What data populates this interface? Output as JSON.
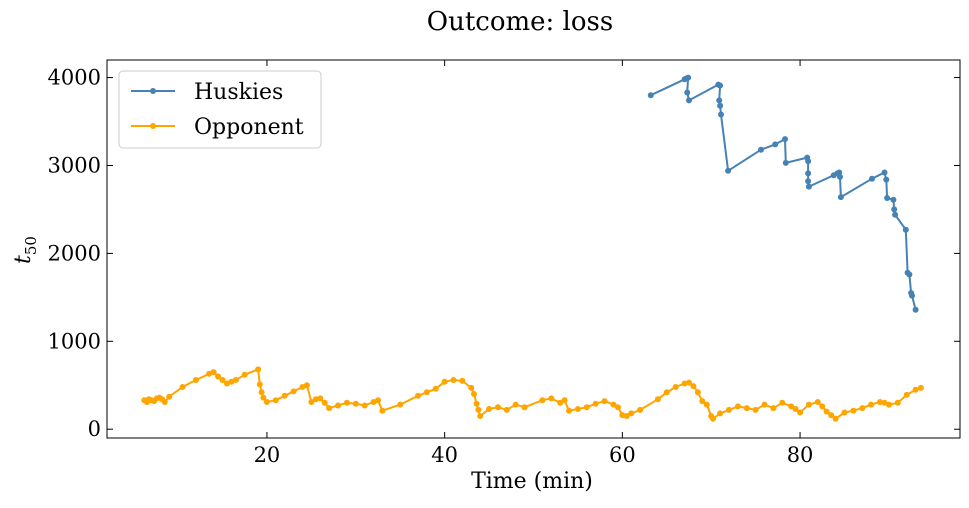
{
  "chart_data": {
    "type": "line",
    "title": "Outcome: loss",
    "xlabel": "Time (min)",
    "ylabel_base": "t",
    "ylabel_sub": "50",
    "xlim": [
      2,
      98
    ],
    "ylim": [
      -100,
      4200
    ],
    "xticks": [
      20,
      40,
      60,
      80
    ],
    "yticks": [
      0,
      1000,
      2000,
      3000,
      4000
    ],
    "grid": false,
    "legend_position": "upper-left",
    "series": [
      {
        "name": "Huskies",
        "color": "#4682b4",
        "x": [
          63.2,
          67.0,
          67.2,
          67.4,
          67.3,
          67.5,
          70.8,
          71.0,
          70.9,
          71.0,
          71.1,
          71.9,
          75.6,
          77.2,
          78.3,
          78.4,
          80.8,
          80.9,
          80.9,
          80.9,
          81.0,
          83.8,
          84.2,
          84.4,
          84.5,
          84.6,
          88.1,
          89.5,
          89.7,
          89.8,
          90.5,
          90.6,
          90.7,
          91.9,
          92.1,
          92.3,
          92.5,
          92.6,
          93.0
        ],
        "y": [
          3800,
          3980,
          3990,
          4000,
          3830,
          3740,
          3920,
          3910,
          3740,
          3680,
          3580,
          2940,
          3180,
          3240,
          3300,
          3030,
          3090,
          3050,
          2910,
          2820,
          2760,
          2890,
          2910,
          2920,
          2870,
          2640,
          2850,
          2920,
          2840,
          2630,
          2610,
          2500,
          2440,
          2270,
          1780,
          1760,
          1550,
          1520,
          1360
        ]
      },
      {
        "name": "Opponent",
        "color": "#ffa500",
        "x": [
          6.2,
          6.5,
          6.7,
          7.0,
          7.3,
          7.6,
          7.9,
          8.2,
          8.5,
          9.0,
          10.5,
          12.0,
          13.5,
          14.0,
          14.5,
          15.0,
          15.5,
          16.0,
          16.5,
          17.5,
          19.0,
          19.2,
          19.4,
          19.6,
          20.0,
          21.0,
          22.0,
          23.0,
          24.0,
          24.5,
          25.0,
          25.5,
          26.0,
          26.5,
          27.0,
          28.0,
          29.0,
          30.0,
          31.0,
          32.0,
          32.5,
          33.0,
          35.0,
          37.0,
          38.0,
          39.0,
          40.0,
          41.0,
          42.0,
          43.0,
          43.3,
          43.6,
          43.8,
          44.0,
          45.0,
          46.0,
          47.0,
          48.0,
          49.0,
          51.0,
          52.0,
          53.0,
          53.5,
          54.0,
          55.0,
          56.0,
          57.0,
          58.0,
          59.0,
          59.5,
          60.0,
          60.5,
          61.0,
          62.0,
          64.0,
          65.0,
          66.0,
          67.0,
          67.5,
          68.0,
          68.5,
          69.0,
          69.5,
          70.0,
          70.2,
          71.0,
          72.0,
          73.0,
          74.0,
          75.0,
          76.0,
          77.0,
          78.0,
          79.0,
          79.5,
          80.0,
          81.0,
          82.0,
          82.5,
          83.0,
          83.5,
          84.0,
          85.0,
          86.0,
          87.0,
          88.0,
          89.0,
          89.5,
          90.0,
          91.0,
          92.0,
          93.0,
          93.6
        ],
        "y": [
          330,
          310,
          340,
          330,
          320,
          350,
          360,
          340,
          310,
          370,
          480,
          560,
          630,
          650,
          600,
          560,
          520,
          540,
          560,
          620,
          680,
          510,
          420,
          360,
          310,
          330,
          380,
          430,
          480,
          500,
          310,
          340,
          350,
          300,
          240,
          270,
          300,
          290,
          270,
          310,
          330,
          210,
          280,
          380,
          420,
          460,
          540,
          560,
          550,
          470,
          400,
          290,
          220,
          150,
          230,
          250,
          220,
          280,
          250,
          330,
          350,
          300,
          330,
          210,
          230,
          250,
          290,
          320,
          280,
          250,
          160,
          150,
          180,
          220,
          340,
          420,
          480,
          520,
          530,
          490,
          420,
          320,
          280,
          150,
          120,
          180,
          220,
          260,
          240,
          220,
          280,
          240,
          300,
          260,
          230,
          190,
          280,
          310,
          260,
          200,
          160,
          120,
          190,
          210,
          240,
          280,
          310,
          300,
          280,
          300,
          390,
          450,
          470
        ]
      }
    ]
  }
}
